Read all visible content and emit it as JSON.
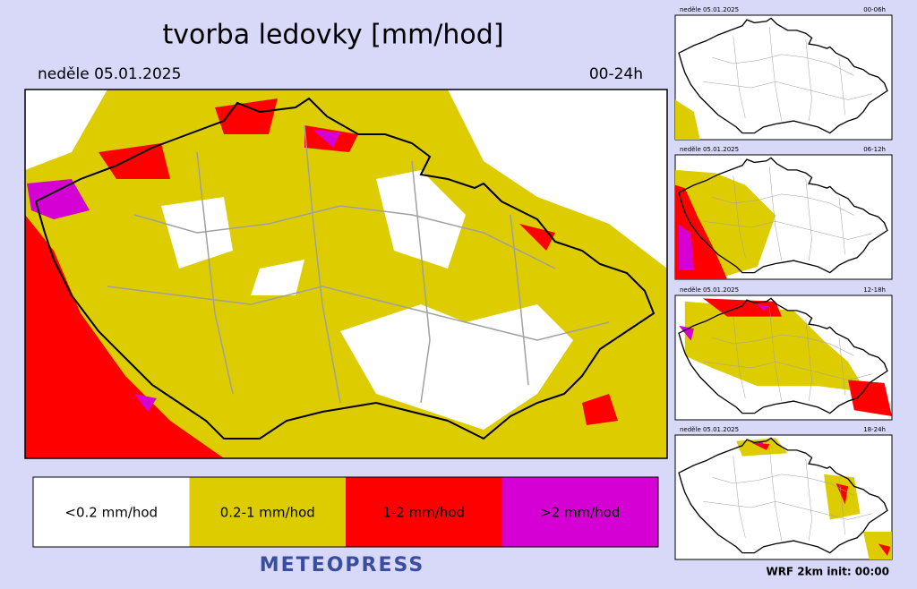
{
  "header": {
    "title": "tvorba ledovky [mm/hod]",
    "date": "neděle 05.01.2025",
    "period": "00-24h"
  },
  "legend": [
    {
      "label": "<0.2 mm/hod",
      "color": "#ffffff"
    },
    {
      "label": "0.2-1 mm/hod",
      "color": "#dccc00"
    },
    {
      "label": "1-2 mm/hod",
      "color": "#ff0000"
    },
    {
      "label": ">2 mm/hod",
      "color": "#d400d4"
    }
  ],
  "brand": "METEOPRESS",
  "thumbnails": [
    {
      "date": "neděle 05.01.2025",
      "period": "00-06h"
    },
    {
      "date": "neděle 05.01.2025",
      "period": "06-12h"
    },
    {
      "date": "neděle 05.01.2025",
      "period": "12-18h"
    },
    {
      "date": "neděle 05.01.2025",
      "period": "18-24h"
    }
  ],
  "footer": "WRF  2km  init: 00:00"
}
